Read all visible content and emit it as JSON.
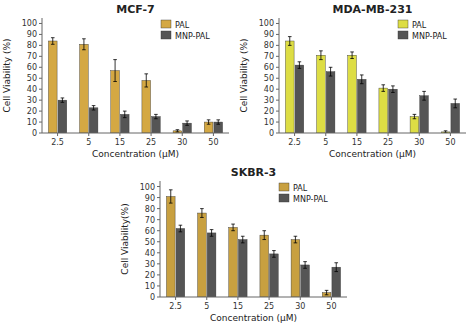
{
  "chart_data": [
    {
      "type": "bar",
      "title": "MCF-7",
      "categories": [
        "2.5",
        "5",
        "15",
        "25",
        "30",
        "50"
      ],
      "series": [
        {
          "name": "PAL",
          "color": "#D4A843",
          "values": [
            84,
            81,
            57,
            48,
            2,
            10
          ],
          "errors": [
            3,
            5,
            10,
            6,
            1,
            2
          ]
        },
        {
          "name": "MNP-PAL",
          "color": "#555555",
          "values": [
            30,
            23,
            17,
            15,
            9,
            10
          ],
          "errors": [
            2,
            2,
            3,
            2,
            2,
            2
          ]
        }
      ],
      "xlabel": "Concentration (μM)",
      "ylabel": "Cell Viability (%)",
      "ylim": [
        0,
        105
      ],
      "yticks": [
        0,
        10,
        20,
        30,
        40,
        50,
        60,
        70,
        80,
        90,
        100
      ],
      "legend": "upper right",
      "grid": false
    },
    {
      "type": "bar",
      "title": "MDA-MB-231",
      "categories": [
        "2.5",
        "5",
        "15",
        "25",
        "30",
        "50"
      ],
      "series": [
        {
          "name": "PAL",
          "color": "#DDDD44",
          "values": [
            84,
            71,
            71,
            41,
            15,
            1
          ],
          "errors": [
            4,
            4,
            3,
            3,
            2,
            1
          ]
        },
        {
          "name": "MNP-PAL",
          "color": "#555555",
          "values": [
            62,
            56,
            49,
            40,
            34,
            27
          ],
          "errors": [
            3,
            4,
            4,
            3,
            4,
            4
          ]
        }
      ],
      "xlabel": "Concentration (μM)",
      "ylabel": "Cell Viability (%)",
      "ylim": [
        0,
        105
      ],
      "yticks": [
        0,
        10,
        20,
        30,
        40,
        50,
        60,
        70,
        80,
        90,
        100
      ],
      "legend": "upper right",
      "grid": false
    },
    {
      "type": "bar",
      "title": "SKBR-3",
      "categories": [
        "2.5",
        "5",
        "15",
        "25",
        "30",
        "50"
      ],
      "series": [
        {
          "name": "PAL",
          "color": "#C8A040",
          "values": [
            91,
            76,
            63,
            56,
            52,
            4
          ],
          "errors": [
            6,
            4,
            3,
            4,
            3,
            2
          ]
        },
        {
          "name": "MNP-PAL",
          "color": "#555555",
          "values": [
            62,
            58,
            52,
            39,
            29,
            27
          ],
          "errors": [
            3,
            3,
            3,
            3,
            3,
            4
          ]
        }
      ],
      "xlabel": "Concentration (μM)",
      "ylabel": "Cell Viability(%)",
      "ylim": [
        0,
        105
      ],
      "yticks": [
        0,
        10,
        20,
        30,
        40,
        50,
        60,
        70,
        80,
        90,
        100
      ],
      "legend": "upper right",
      "grid": false
    }
  ]
}
